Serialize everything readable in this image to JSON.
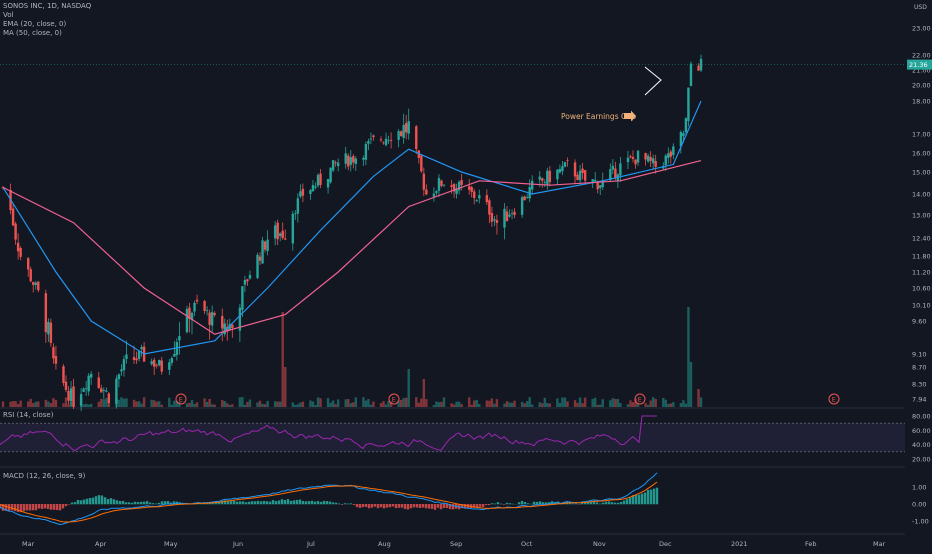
{
  "header": {
    "title": "SONOS INC, 1D, NASDAQ",
    "vol_label": "Vol",
    "ema_label": "EMA (20, close, 0)",
    "ma_label": "MA (50, close, 0)"
  },
  "currency": "USD",
  "price_tag": "21.36",
  "annotation": "Power Earnings Gap",
  "earnings_marker": "E",
  "rsi_label": "RSI (14, close)",
  "macd_label": "MACD (12, 26, close, 9)",
  "colors": {
    "background": "#131722",
    "up": "#26a69a",
    "down": "#ef5350",
    "ema": "#2196f3",
    "ma": "#f06292",
    "rsi_line": "#9c27b0",
    "rsi_band": "#7e57c2",
    "macd_line": "#2196f3",
    "signal_line": "#ff6d00",
    "annotation": "#f0b27a",
    "triangle": "#ffffff"
  },
  "chart_data": {
    "type": "candlestick",
    "price_axis_ticks": [
      "23.00",
      "22.00",
      "21.00",
      "20.00",
      "18.00",
      "17.00",
      "16.00",
      "15.00",
      "14.00",
      "13.00",
      "12.40",
      "11.80",
      "11.20",
      "10.60",
      "10.10",
      "9.60",
      "9.10",
      "8.70",
      "8.30",
      "7.94"
    ],
    "rsi_ticks": [
      "80.00",
      "60.00",
      "40.00",
      "20.00"
    ],
    "macd_ticks": [
      "1.00",
      "0.00",
      "-1.00"
    ],
    "x_ticks": [
      "Mar",
      "Apr",
      "May",
      "Jun",
      "Jul",
      "Aug",
      "Sep",
      "Oct",
      "Nov",
      "Dec",
      "2021",
      "Feb",
      "Mar"
    ],
    "rsi_band": [
      30,
      70
    ],
    "last_close": 21.36,
    "approx_close_path": [
      {
        "date": "2020-02-21",
        "close": 14.3
      },
      {
        "date": "2020-02-28",
        "close": 11.8
      },
      {
        "date": "2020-03-06",
        "close": 10.4
      },
      {
        "date": "2020-03-13",
        "close": 8.6
      },
      {
        "date": "2020-03-20",
        "close": 7.9
      },
      {
        "date": "2020-03-27",
        "close": 8.6
      },
      {
        "date": "2020-04-03",
        "close": 8.0
      },
      {
        "date": "2020-04-10",
        "close": 8.9
      },
      {
        "date": "2020-04-17",
        "close": 9.0
      },
      {
        "date": "2020-04-24",
        "close": 8.7
      },
      {
        "date": "2020-05-01",
        "close": 9.5
      },
      {
        "date": "2020-05-08",
        "close": 10.1
      },
      {
        "date": "2020-05-15",
        "close": 9.6
      },
      {
        "date": "2020-05-22",
        "close": 9.5
      },
      {
        "date": "2020-05-29",
        "close": 11.2
      },
      {
        "date": "2020-06-05",
        "close": 12.4
      },
      {
        "date": "2020-06-12",
        "close": 12.6
      },
      {
        "date": "2020-06-19",
        "close": 14.0
      },
      {
        "date": "2020-06-26",
        "close": 14.6
      },
      {
        "date": "2020-07-03",
        "close": 15.5
      },
      {
        "date": "2020-07-10",
        "close": 15.8
      },
      {
        "date": "2020-07-17",
        "close": 16.6
      },
      {
        "date": "2020-07-24",
        "close": 17.0
      },
      {
        "date": "2020-07-31",
        "close": 17.2
      },
      {
        "date": "2020-08-07",
        "close": 14.0
      },
      {
        "date": "2020-08-14",
        "close": 14.6
      },
      {
        "date": "2020-08-21",
        "close": 14.2
      },
      {
        "date": "2020-08-28",
        "close": 13.8
      },
      {
        "date": "2020-09-04",
        "close": 12.8
      },
      {
        "date": "2020-09-11",
        "close": 13.3
      },
      {
        "date": "2020-09-18",
        "close": 14.3
      },
      {
        "date": "2020-09-25",
        "close": 14.8
      },
      {
        "date": "2020-10-02",
        "close": 15.3
      },
      {
        "date": "2020-10-09",
        "close": 14.6
      },
      {
        "date": "2020-10-16",
        "close": 14.5
      },
      {
        "date": "2020-10-23",
        "close": 15.3
      },
      {
        "date": "2020-10-30",
        "close": 15.8
      },
      {
        "date": "2020-11-06",
        "close": 15.3
      },
      {
        "date": "2020-11-13",
        "close": 16.0
      },
      {
        "date": "2020-11-18",
        "close": 17.3
      },
      {
        "date": "2020-11-20",
        "close": 21.4
      },
      {
        "date": "2020-11-24",
        "close": 21.36
      }
    ],
    "approx_ema20": [
      {
        "date": "2020-02-21",
        "value": 14.3
      },
      {
        "date": "2020-03-13",
        "value": 11.2
      },
      {
        "date": "2020-03-27",
        "value": 9.6
      },
      {
        "date": "2020-04-17",
        "value": 9.1
      },
      {
        "date": "2020-05-15",
        "value": 9.3
      },
      {
        "date": "2020-06-05",
        "value": 10.6
      },
      {
        "date": "2020-06-26",
        "value": 12.6
      },
      {
        "date": "2020-07-17",
        "value": 14.8
      },
      {
        "date": "2020-07-31",
        "value": 16.2
      },
      {
        "date": "2020-08-21",
        "value": 15.0
      },
      {
        "date": "2020-09-18",
        "value": 14.0
      },
      {
        "date": "2020-10-16",
        "value": 14.6
      },
      {
        "date": "2020-11-13",
        "value": 15.4
      },
      {
        "date": "2020-11-24",
        "value": 18.0
      }
    ],
    "approx_ma50": [
      {
        "date": "2020-02-21",
        "value": 14.3
      },
      {
        "date": "2020-03-20",
        "value": 12.8
      },
      {
        "date": "2020-04-17",
        "value": 10.6
      },
      {
        "date": "2020-05-15",
        "value": 9.4
      },
      {
        "date": "2020-06-12",
        "value": 9.8
      },
      {
        "date": "2020-07-03",
        "value": 11.2
      },
      {
        "date": "2020-07-31",
        "value": 13.4
      },
      {
        "date": "2020-08-28",
        "value": 14.6
      },
      {
        "date": "2020-09-25",
        "value": 14.4
      },
      {
        "date": "2020-10-23",
        "value": 14.6
      },
      {
        "date": "2020-11-24",
        "value": 15.6
      }
    ]
  }
}
